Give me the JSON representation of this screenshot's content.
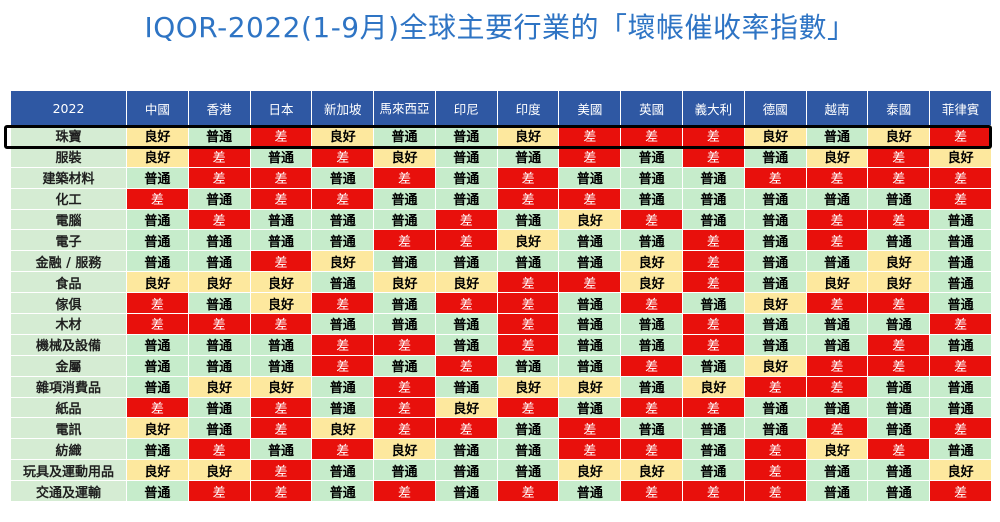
{
  "title": "IQOR-2022(1-9月)全球主要行業的「壞帳催收率指數」",
  "table": {
    "corner": "2022",
    "countries": [
      "中國",
      "香港",
      "日本",
      "新加坡",
      "馬來西亞",
      "印尼",
      "印度",
      "美國",
      "英國",
      "義大利",
      "德國",
      "越南",
      "泰國",
      "菲律賓"
    ],
    "highlighted_row": "珠寶",
    "rows": [
      {
        "industry": "珠寶",
        "values": [
          "良好",
          "普通",
          "差",
          "良好",
          "普通",
          "普通",
          "良好",
          "差",
          "差",
          "差",
          "良好",
          "普通",
          "良好",
          "差"
        ]
      },
      {
        "industry": "服裝",
        "values": [
          "良好",
          "差",
          "普通",
          "差",
          "良好",
          "普通",
          "普通",
          "差",
          "普通",
          "差",
          "普通",
          "良好",
          "差",
          "良好"
        ]
      },
      {
        "industry": "建築材料",
        "values": [
          "普通",
          "差",
          "差",
          "普通",
          "差",
          "普通",
          "差",
          "普通",
          "普通",
          "普通",
          "差",
          "差",
          "差",
          "差"
        ]
      },
      {
        "industry": "化工",
        "values": [
          "差",
          "普通",
          "差",
          "差",
          "普通",
          "普通",
          "差",
          "差",
          "普通",
          "普通",
          "普通",
          "普通",
          "普通",
          "差"
        ]
      },
      {
        "industry": "電腦",
        "values": [
          "普通",
          "差",
          "普通",
          "普通",
          "普通",
          "差",
          "普通",
          "良好",
          "差",
          "普通",
          "普通",
          "差",
          "差",
          "普通"
        ]
      },
      {
        "industry": "電子",
        "values": [
          "普通",
          "普通",
          "普通",
          "普通",
          "差",
          "差",
          "良好",
          "普通",
          "普通",
          "差",
          "普通",
          "差",
          "普通",
          "普通"
        ]
      },
      {
        "industry": "金融 / 服務",
        "values": [
          "普通",
          "普通",
          "差",
          "良好",
          "普通",
          "普通",
          "普通",
          "普通",
          "良好",
          "差",
          "普通",
          "普通",
          "良好",
          "普通"
        ]
      },
      {
        "industry": "食品",
        "values": [
          "良好",
          "良好",
          "良好",
          "普通",
          "良好",
          "良好",
          "差",
          "差",
          "良好",
          "差",
          "普通",
          "良好",
          "良好",
          "普通"
        ]
      },
      {
        "industry": "傢俱",
        "values": [
          "差",
          "普通",
          "良好",
          "差",
          "普通",
          "差",
          "差",
          "普通",
          "差",
          "普通",
          "良好",
          "差",
          "差",
          "普通"
        ]
      },
      {
        "industry": "木材",
        "values": [
          "差",
          "差",
          "差",
          "普通",
          "普通",
          "普通",
          "差",
          "普通",
          "普通",
          "差",
          "普通",
          "普通",
          "普通",
          "差"
        ]
      },
      {
        "industry": "機械及設備",
        "values": [
          "普通",
          "普通",
          "普通",
          "差",
          "差",
          "普通",
          "差",
          "普通",
          "普通",
          "差",
          "普通",
          "普通",
          "差",
          "普通"
        ]
      },
      {
        "industry": "金屬",
        "values": [
          "普通",
          "普通",
          "普通",
          "差",
          "普通",
          "差",
          "普通",
          "普通",
          "差",
          "普通",
          "良好",
          "差",
          "差",
          "差"
        ]
      },
      {
        "industry": "雜項消費品",
        "values": [
          "普通",
          "良好",
          "良好",
          "普通",
          "差",
          "普通",
          "良好",
          "良好",
          "普通",
          "良好",
          "差",
          "差",
          "普通",
          "普通"
        ]
      },
      {
        "industry": "紙品",
        "values": [
          "差",
          "普通",
          "差",
          "普通",
          "差",
          "良好",
          "差",
          "普通",
          "差",
          "差",
          "普通",
          "普通",
          "普通",
          "普通"
        ]
      },
      {
        "industry": "電訊",
        "values": [
          "良好",
          "普通",
          "差",
          "良好",
          "差",
          "差",
          "普通",
          "差",
          "普通",
          "普通",
          "普通",
          "差",
          "普通",
          "差"
        ]
      },
      {
        "industry": "紡織",
        "values": [
          "普通",
          "差",
          "普通",
          "差",
          "良好",
          "普通",
          "普通",
          "差",
          "差",
          "普通",
          "差",
          "良好",
          "差",
          "普通"
        ]
      },
      {
        "industry": "玩具及運動用品",
        "values": [
          "良好",
          "良好",
          "差",
          "普通",
          "普通",
          "普通",
          "普通",
          "良好",
          "良好",
          "普通",
          "差",
          "普通",
          "普通",
          "良好"
        ]
      },
      {
        "industry": "交通及運輸",
        "values": [
          "普通",
          "差",
          "差",
          "普通",
          "差",
          "普通",
          "差",
          "普通",
          "差",
          "差",
          "差",
          "普通",
          "普通",
          "差"
        ]
      }
    ]
  },
  "colors": {
    "header_bg": "#2f58a3",
    "good": "#fde89e",
    "normal": "#c6eccb",
    "bad": "#e8100c",
    "title": "#2e74c4"
  }
}
